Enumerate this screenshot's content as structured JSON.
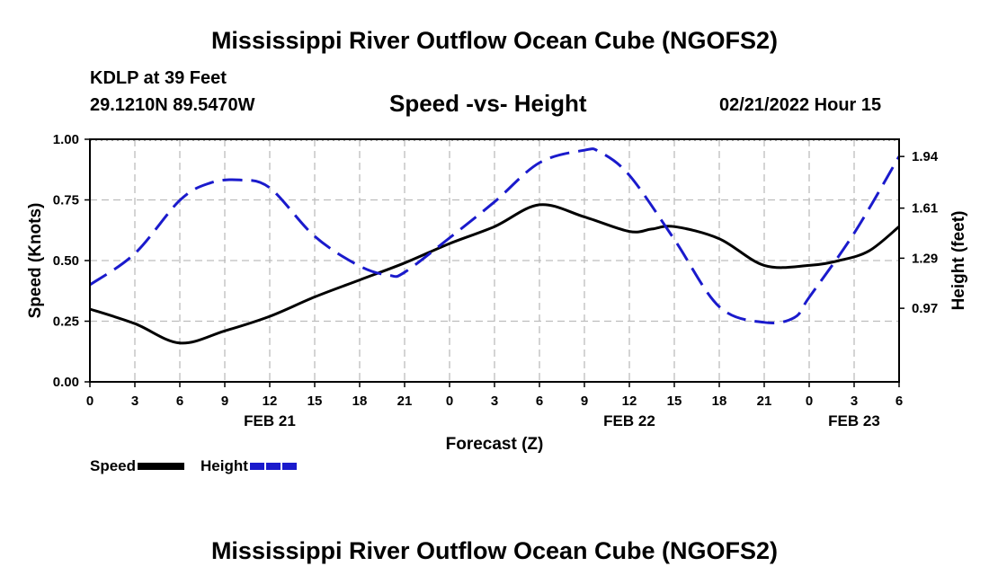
{
  "header": {
    "title": "Mississippi River Outflow Ocean Cube (NGOFS2)",
    "station": "KDLP at 39 Feet",
    "coords": "29.1210N  89.5470W",
    "datetime": "02/21/2022 Hour 15"
  },
  "footer": {
    "title": "Mississippi River Outflow Ocean Cube (NGOFS2)"
  },
  "legend": {
    "speed_label": "Speed",
    "height_label": "Height"
  },
  "chart_data": {
    "type": "line",
    "title": "Speed -vs- Height",
    "xlabel": "Forecast (Z)",
    "ylabel": "Speed (Knots)",
    "y2label": "Height (feet)",
    "x": [
      0,
      3,
      6,
      9,
      12,
      15,
      18,
      21,
      24,
      27,
      30,
      33,
      36,
      39,
      42,
      45,
      48,
      51,
      54
    ],
    "xlim": [
      0,
      54
    ],
    "x_tick_labels": [
      "0",
      "3",
      "6",
      "9",
      "12",
      "15",
      "18",
      "21",
      "0",
      "3",
      "6",
      "9",
      "12",
      "15",
      "18",
      "21",
      "0",
      "3",
      "6"
    ],
    "date_labels": [
      {
        "x": 12,
        "label": "FEB 21"
      },
      {
        "x": 36,
        "label": "FEB 22"
      },
      {
        "x": 51,
        "label": "FEB 23"
      }
    ],
    "ylim": [
      0,
      1
    ],
    "y_ticks": [
      0,
      0.25,
      0.5,
      0.75,
      1.0
    ],
    "y_tick_labels": [
      "0.00",
      "0.25",
      "0.50",
      "0.75",
      "1.00"
    ],
    "y2_ticks": [
      0.97,
      1.29,
      1.61,
      1.94
    ],
    "y2_tick_labels": [
      "0.97",
      "1.29",
      "1.61",
      "1.94"
    ],
    "y2lim": [
      0.5,
      2.05
    ],
    "series": [
      {
        "name": "Speed",
        "axis": "left",
        "color": "#000000",
        "style": "solid",
        "x": [
          0,
          3,
          6,
          9,
          12,
          15,
          18,
          21,
          24,
          27,
          30,
          33,
          36,
          37.5,
          39,
          42,
          45,
          48,
          50,
          52,
          54
        ],
        "values": [
          0.3,
          0.24,
          0.16,
          0.21,
          0.27,
          0.35,
          0.42,
          0.49,
          0.57,
          0.64,
          0.73,
          0.68,
          0.62,
          0.63,
          0.64,
          0.59,
          0.48,
          0.48,
          0.5,
          0.54,
          0.64
        ]
      },
      {
        "name": "Height",
        "axis": "right",
        "color": "#1a1acc",
        "style": "dashed",
        "x": [
          0,
          3,
          6,
          8,
          10,
          12,
          15,
          18,
          20,
          21,
          24,
          27,
          30,
          33,
          34,
          36,
          39,
          42,
          45,
          47,
          48,
          51,
          54
        ],
        "values": [
          1.12,
          1.32,
          1.66,
          1.77,
          1.79,
          1.74,
          1.43,
          1.24,
          1.18,
          1.2,
          1.42,
          1.65,
          1.9,
          1.98,
          1.97,
          1.82,
          1.41,
          0.98,
          0.88,
          0.91,
          1.04,
          1.45,
          1.94
        ]
      }
    ]
  }
}
